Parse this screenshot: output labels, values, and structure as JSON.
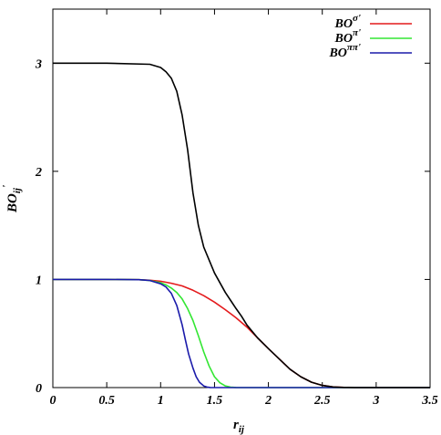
{
  "chart_data": {
    "type": "line",
    "title": "",
    "xlabel": {
      "base": "r",
      "sub": "ij"
    },
    "ylabel": {
      "base": "BO",
      "sub": "ij",
      "sup": "'"
    },
    "xlim": [
      0,
      3.5
    ],
    "ylim": [
      0,
      3.5
    ],
    "x_ticks": [
      "0",
      "0.5",
      "1",
      "1.5",
      "2",
      "2.5",
      "3",
      "3.5"
    ],
    "x_tick_values": [
      0,
      0.5,
      1,
      1.5,
      2,
      2.5,
      3,
      3.5
    ],
    "y_ticks": [
      "0",
      "1",
      "2",
      "3"
    ],
    "y_tick_values": [
      0,
      1,
      2,
      3
    ],
    "grid": false,
    "legend_position": "top-right",
    "series": [
      {
        "legend_base": "BO",
        "legend_sup": "σ'",
        "color": "#e41a1c",
        "x": [
          0,
          0.5,
          0.8,
          0.9,
          1.0,
          1.1,
          1.2,
          1.3,
          1.4,
          1.5,
          1.6,
          1.7,
          1.8,
          1.9,
          2.0,
          2.1,
          2.2,
          2.3,
          2.4,
          2.5,
          2.6,
          2.7,
          2.8,
          3.0,
          3.5
        ],
        "y": [
          1.0,
          1.0,
          0.998,
          0.993,
          0.983,
          0.965,
          0.94,
          0.9,
          0.85,
          0.79,
          0.72,
          0.645,
          0.56,
          0.46,
          0.36,
          0.265,
          0.17,
          0.1,
          0.05,
          0.02,
          0.006,
          0.002,
          0.0,
          0.0,
          0.0
        ]
      },
      {
        "legend_base": "BO",
        "legend_sup": "π'",
        "color": "#33e633",
        "x": [
          0,
          0.5,
          0.8,
          0.9,
          1.0,
          1.05,
          1.1,
          1.15,
          1.2,
          1.25,
          1.3,
          1.35,
          1.4,
          1.45,
          1.5,
          1.55,
          1.6,
          1.65,
          1.7,
          1.8,
          2.0,
          3.5
        ],
        "y": [
          1.0,
          1.0,
          0.998,
          0.99,
          0.97,
          0.95,
          0.92,
          0.88,
          0.82,
          0.73,
          0.62,
          0.48,
          0.33,
          0.2,
          0.1,
          0.045,
          0.015,
          0.004,
          0.001,
          0.0,
          0.0,
          0.0
        ]
      },
      {
        "legend_base": "BO",
        "legend_sup": "ππ'",
        "color": "#1a1aaa",
        "x": [
          0,
          0.5,
          0.8,
          0.9,
          1.0,
          1.05,
          1.1,
          1.15,
          1.2,
          1.23,
          1.26,
          1.3,
          1.33,
          1.36,
          1.4,
          1.43,
          1.46,
          1.5,
          1.55,
          3.5
        ],
        "y": [
          1.0,
          1.0,
          0.998,
          0.99,
          0.96,
          0.93,
          0.87,
          0.76,
          0.58,
          0.44,
          0.31,
          0.18,
          0.1,
          0.05,
          0.015,
          0.005,
          0.001,
          0.0,
          0.0,
          0.0
        ]
      },
      {
        "legend_base": "",
        "legend_sup": "",
        "color": "#000000",
        "x": [
          0,
          0.5,
          0.9,
          1.0,
          1.05,
          1.1,
          1.15,
          1.2,
          1.25,
          1.3,
          1.35,
          1.4,
          1.5,
          1.6,
          1.7,
          1.75,
          1.8,
          1.9,
          2.0,
          2.1,
          2.2,
          2.3,
          2.4,
          2.5,
          2.6,
          2.7,
          2.8,
          3.0,
          3.5
        ],
        "y": [
          3.0,
          3.0,
          2.99,
          2.96,
          2.92,
          2.86,
          2.74,
          2.52,
          2.2,
          1.8,
          1.5,
          1.3,
          1.06,
          0.88,
          0.73,
          0.66,
          0.58,
          0.46,
          0.36,
          0.265,
          0.17,
          0.1,
          0.05,
          0.02,
          0.006,
          0.002,
          0.0,
          0.0,
          0.0
        ]
      }
    ]
  }
}
